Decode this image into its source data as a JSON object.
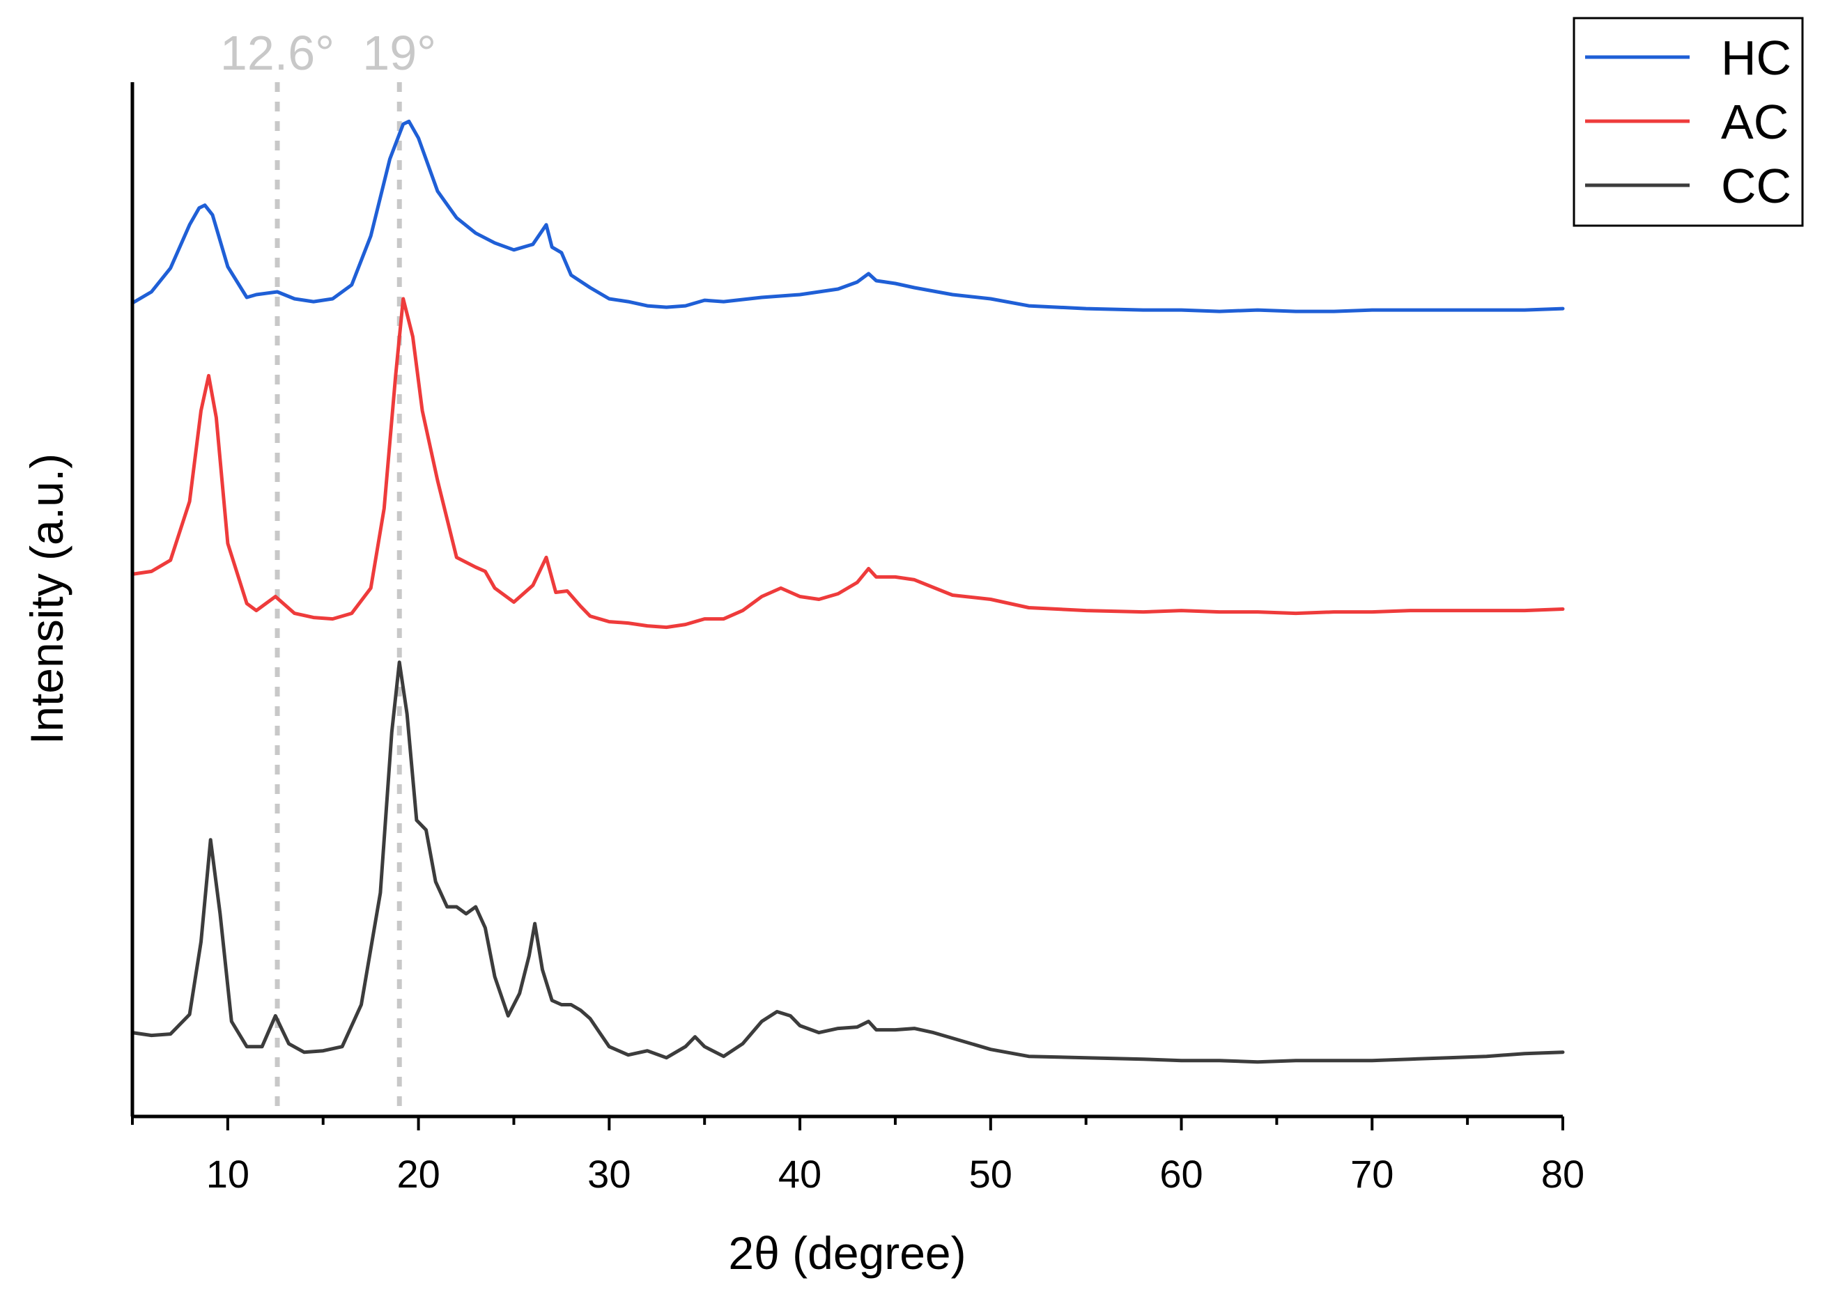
{
  "chart_data": {
    "type": "line",
    "title": "",
    "xlabel": "2θ (degree)",
    "ylabel": "Intensity (a.u.)",
    "xlim": [
      5,
      80
    ],
    "ylim": [
      0,
      7.4
    ],
    "x_ticks": [
      10,
      20,
      30,
      40,
      50,
      60,
      70,
      80
    ],
    "y_ticks_shown": false,
    "grid": false,
    "legend_position": "top-right",
    "reference_lines": [
      {
        "x": 12.6,
        "label": "12.6°",
        "color": "#c8c8c8",
        "style": "dashed"
      },
      {
        "x": 19,
        "label": "19°",
        "color": "#c8c8c8",
        "style": "dashed"
      }
    ],
    "series": [
      {
        "name": "HC",
        "color": "#1f5fd6",
        "x": [
          5,
          6,
          7,
          8,
          8.5,
          8.8,
          9.2,
          10,
          11,
          11.5,
          12.6,
          13.5,
          14.5,
          15.5,
          16.5,
          17.5,
          18.5,
          19.2,
          19.5,
          20,
          21,
          22,
          23,
          24,
          25,
          26,
          26.7,
          27,
          27.5,
          28,
          29,
          30,
          31,
          32,
          33,
          34,
          35,
          36,
          38,
          40,
          42,
          43,
          43.6,
          44,
          45,
          46,
          48,
          50,
          52,
          55,
          58,
          60,
          62,
          64,
          66,
          68,
          70,
          72,
          74,
          76,
          78,
          80
        ],
        "values": [
          5.82,
          5.9,
          6.07,
          6.38,
          6.5,
          6.52,
          6.45,
          6.08,
          5.86,
          5.88,
          5.9,
          5.85,
          5.83,
          5.85,
          5.95,
          6.3,
          6.85,
          7.1,
          7.12,
          7.0,
          6.62,
          6.43,
          6.32,
          6.25,
          6.2,
          6.24,
          6.38,
          6.22,
          6.18,
          6.02,
          5.93,
          5.85,
          5.83,
          5.8,
          5.79,
          5.8,
          5.84,
          5.83,
          5.86,
          5.88,
          5.92,
          5.97,
          6.03,
          5.98,
          5.96,
          5.93,
          5.88,
          5.85,
          5.8,
          5.78,
          5.77,
          5.77,
          5.76,
          5.77,
          5.76,
          5.76,
          5.77,
          5.77,
          5.77,
          5.77,
          5.77,
          5.78
        ]
      },
      {
        "name": "AC",
        "color": "#ee3b3b",
        "x": [
          5,
          6,
          7,
          8,
          8.6,
          9.0,
          9.4,
          10,
          11,
          11.5,
          12.5,
          13.5,
          14.5,
          15.5,
          16.5,
          17.5,
          18.2,
          18.8,
          19.2,
          19.7,
          20.2,
          21,
          22,
          23,
          23.5,
          24,
          25,
          26,
          26.7,
          27.2,
          27.8,
          28.5,
          29,
          30,
          31,
          32,
          33,
          34,
          35,
          36,
          37,
          38,
          39,
          40,
          41,
          42,
          43,
          43.6,
          44,
          45,
          46,
          48,
          50,
          52,
          55,
          58,
          60,
          62,
          64,
          66,
          68,
          70,
          72,
          74,
          76,
          78,
          80
        ],
        "values": [
          3.88,
          3.9,
          3.98,
          4.4,
          5.05,
          5.3,
          5.0,
          4.1,
          3.67,
          3.62,
          3.72,
          3.6,
          3.57,
          3.56,
          3.6,
          3.78,
          4.35,
          5.3,
          5.85,
          5.58,
          5.05,
          4.55,
          4.0,
          3.93,
          3.9,
          3.78,
          3.68,
          3.8,
          4.0,
          3.75,
          3.76,
          3.65,
          3.58,
          3.54,
          3.53,
          3.51,
          3.5,
          3.52,
          3.56,
          3.56,
          3.62,
          3.72,
          3.78,
          3.72,
          3.7,
          3.74,
          3.82,
          3.92,
          3.86,
          3.86,
          3.84,
          3.73,
          3.7,
          3.64,
          3.62,
          3.61,
          3.62,
          3.61,
          3.61,
          3.6,
          3.61,
          3.61,
          3.62,
          3.62,
          3.62,
          3.62,
          3.63
        ]
      },
      {
        "name": "CC",
        "color": "#3c3c3c",
        "x": [
          5,
          6,
          7,
          8,
          8.6,
          9.1,
          9.6,
          10.2,
          11,
          11.8,
          12.5,
          13.2,
          14,
          15,
          16,
          17,
          18,
          18.6,
          19.0,
          19.4,
          19.9,
          20.4,
          20.9,
          21.5,
          22,
          22.5,
          23,
          23.5,
          24,
          24.7,
          25.3,
          25.8,
          26.1,
          26.5,
          27,
          27.5,
          28,
          28.5,
          29,
          29.5,
          30,
          31,
          32,
          33,
          34,
          34.5,
          35,
          36,
          37,
          38,
          38.8,
          39.5,
          40,
          41,
          42,
          43,
          43.6,
          44,
          45,
          46,
          47,
          48,
          50,
          52,
          55,
          58,
          60,
          62,
          64,
          66,
          68,
          70,
          72,
          74,
          76,
          78,
          80
        ],
        "values": [
          0.6,
          0.58,
          0.59,
          0.73,
          1.25,
          1.98,
          1.45,
          0.68,
          0.5,
          0.5,
          0.72,
          0.52,
          0.46,
          0.47,
          0.5,
          0.8,
          1.6,
          2.75,
          3.25,
          2.88,
          2.12,
          2.05,
          1.68,
          1.5,
          1.5,
          1.45,
          1.5,
          1.35,
          1.0,
          0.72,
          0.88,
          1.15,
          1.38,
          1.05,
          0.83,
          0.8,
          0.8,
          0.76,
          0.7,
          0.6,
          0.5,
          0.44,
          0.47,
          0.42,
          0.5,
          0.57,
          0.5,
          0.43,
          0.52,
          0.68,
          0.75,
          0.72,
          0.65,
          0.6,
          0.63,
          0.64,
          0.68,
          0.62,
          0.62,
          0.63,
          0.6,
          0.56,
          0.48,
          0.43,
          0.42,
          0.41,
          0.4,
          0.4,
          0.39,
          0.4,
          0.4,
          0.4,
          0.41,
          0.42,
          0.43,
          0.45,
          0.46
        ]
      }
    ]
  }
}
